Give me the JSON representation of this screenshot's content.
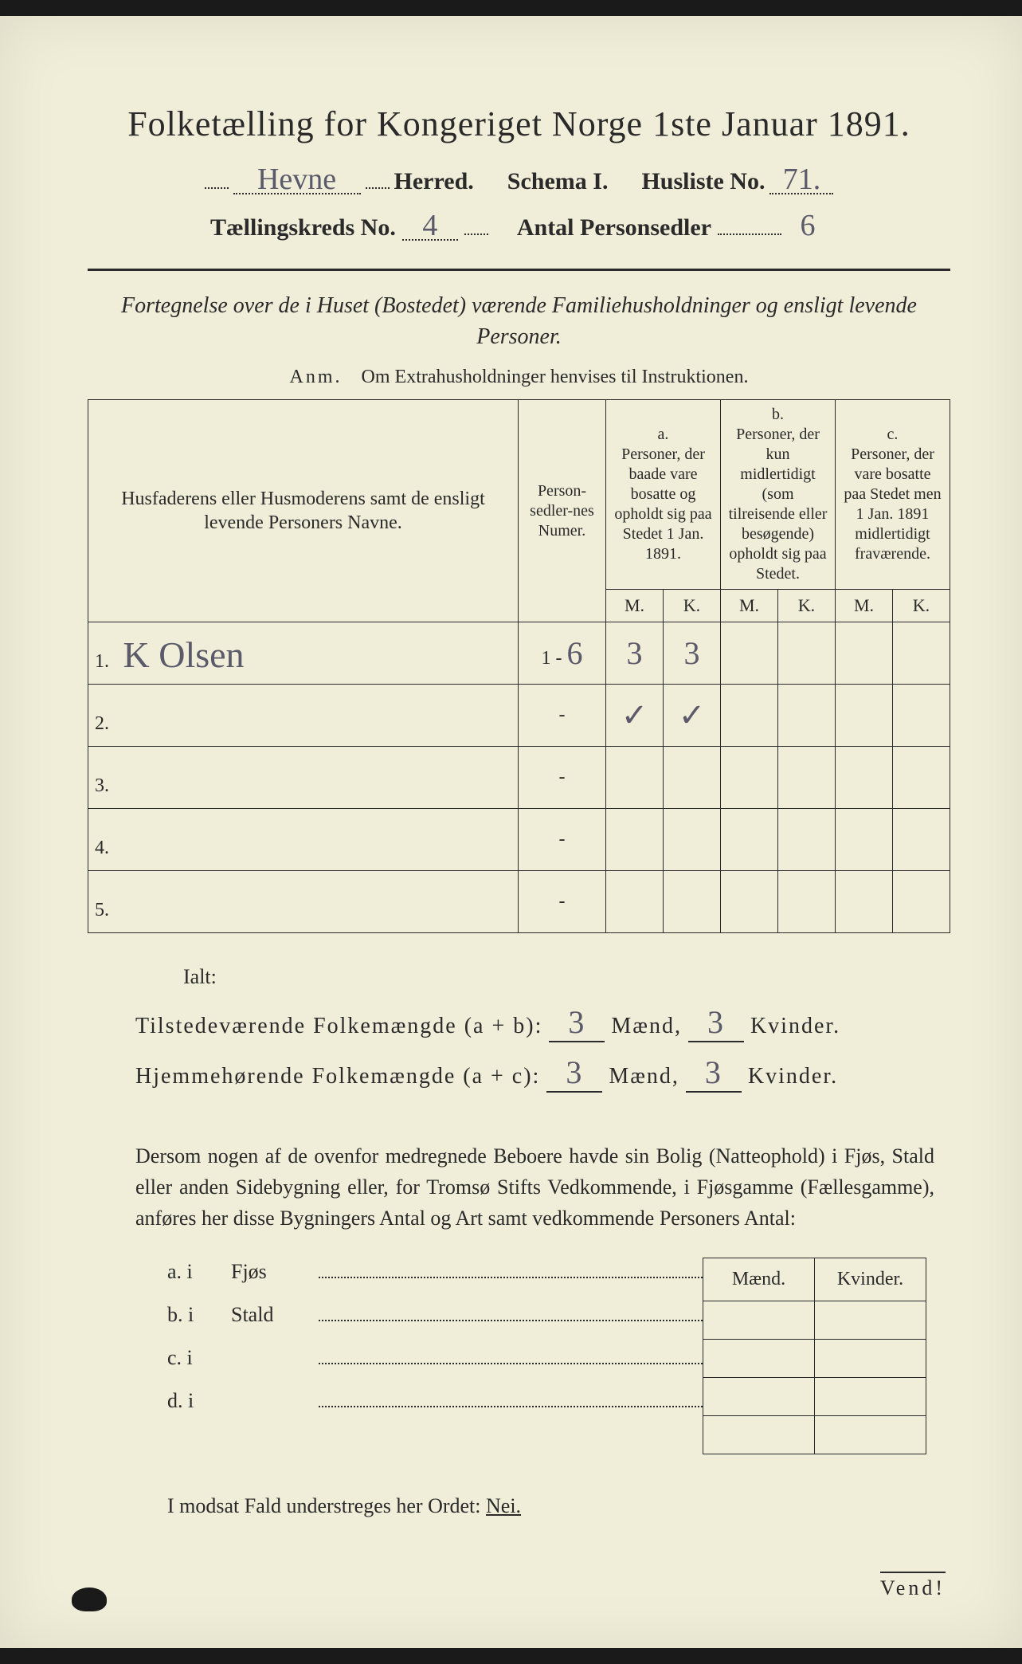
{
  "colors": {
    "page_bg": "#f0edd8",
    "ink": "#2a2a2a",
    "handwriting": "#5a5a6a",
    "outer_bg": "#1a1a1a"
  },
  "typography": {
    "title_pt": 44,
    "subtitle_pt": 30,
    "body_pt": 26,
    "table_header_pt": 20,
    "handwriting_pt": 46
  },
  "header": {
    "title": "Folketælling for Kongeriget Norge 1ste Januar 1891.",
    "herred_value": "Hevne",
    "herred_label": "Herred.",
    "schema_label": "Schema I.",
    "husliste_label": "Husliste No.",
    "husliste_value": "71.",
    "kreds_label": "Tællingskreds No.",
    "kreds_value": "4",
    "antal_label": "Antal Personsedler",
    "antal_value": "6"
  },
  "description": {
    "line": "Fortegnelse over de i Huset (Bostedet) værende Familiehusholdninger og ensligt levende Personer.",
    "anm_label": "Anm.",
    "anm_text": "Om Extrahusholdninger henvises til Instruktionen."
  },
  "table": {
    "columns": {
      "names": "Husfaderens eller Husmoderens samt de ensligt levende Personers Navne.",
      "numer": "Person-sedler-nes Numer.",
      "a_label": "a.",
      "a_text": "Personer, der baade vare bosatte og opholdt sig paa Stedet 1 Jan. 1891.",
      "b_label": "b.",
      "b_text": "Personer, der kun midlertidigt (som tilreisende eller besøgende) opholdt sig paa Stedet.",
      "c_label": "c.",
      "c_text": "Personer, der vare bosatte paa Stedet men 1 Jan. 1891 midlertidigt fraværende.",
      "M": "M.",
      "K": "K."
    },
    "rows": [
      {
        "n": "1.",
        "name": "K Olsen",
        "numer_prefix": "1 -",
        "numer": "6",
        "a_m": "3",
        "a_k": "3",
        "b_m": "",
        "b_k": "",
        "c_m": "",
        "c_k": ""
      },
      {
        "n": "2.",
        "name": "",
        "numer_prefix": "",
        "numer": "-",
        "a_m": "✓",
        "a_k": "✓",
        "b_m": "",
        "b_k": "",
        "c_m": "",
        "c_k": ""
      },
      {
        "n": "3.",
        "name": "",
        "numer_prefix": "",
        "numer": "-",
        "a_m": "",
        "a_k": "",
        "b_m": "",
        "b_k": "",
        "c_m": "",
        "c_k": ""
      },
      {
        "n": "4.",
        "name": "",
        "numer_prefix": "",
        "numer": "-",
        "a_m": "",
        "a_k": "",
        "b_m": "",
        "b_k": "",
        "c_m": "",
        "c_k": ""
      },
      {
        "n": "5.",
        "name": "",
        "numer_prefix": "",
        "numer": "-",
        "a_m": "",
        "a_k": "",
        "b_m": "",
        "b_k": "",
        "c_m": "",
        "c_k": ""
      }
    ]
  },
  "totals": {
    "ialt": "Ialt:",
    "row1_label": "Tilstedeværende Folkemængde (a + b):",
    "row2_label": "Hjemmehørende Folkemængde (a + c):",
    "maend": "Mænd,",
    "kvinder": "Kvinder.",
    "r1_m": "3",
    "r1_k": "3",
    "r2_m": "3",
    "r2_k": "3"
  },
  "paragraph": "Dersom nogen af de ovenfor medregnede Beboere havde sin Bolig (Natteophold) i Fjøs, Stald eller anden Sidebygning eller, for Tromsø Stifts Vedkommende, i Fjøsgamme (Fællesgamme), anføres her disse Bygningers Antal og Art samt vedkommende Personers Antal:",
  "sub": {
    "head_m": "Mænd.",
    "head_k": "Kvinder.",
    "rows": [
      {
        "lab": "a.  i",
        "txt": "Fjøs"
      },
      {
        "lab": "b.  i",
        "txt": "Stald"
      },
      {
        "lab": "c.  i",
        "txt": ""
      },
      {
        "lab": "d.  i",
        "txt": ""
      }
    ]
  },
  "modsat": {
    "pre": "I modsat Fald understreges her Ordet: ",
    "nei": "Nei."
  },
  "vend": "Vend!"
}
